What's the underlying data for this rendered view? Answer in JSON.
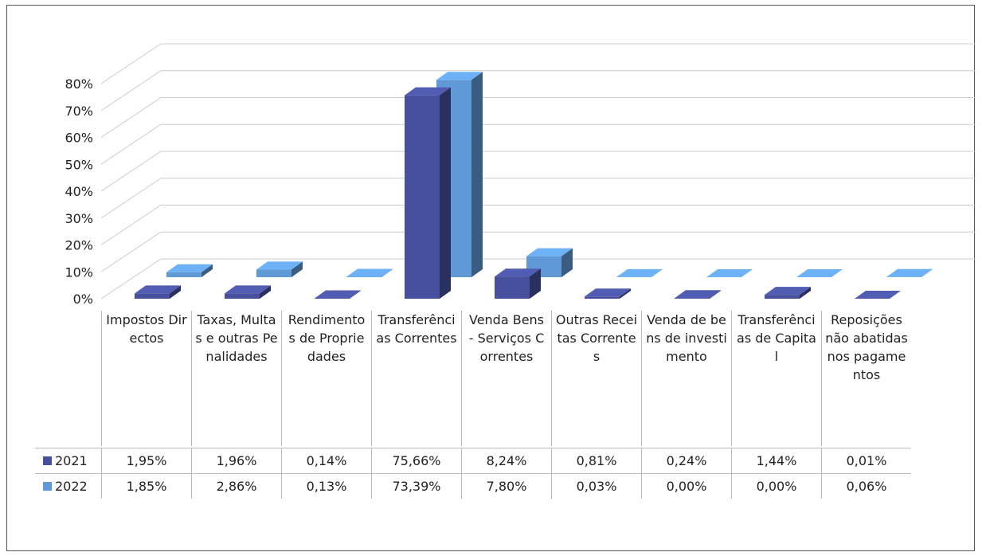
{
  "chart_data": {
    "type": "bar3d",
    "categories": [
      "Impostos Directos",
      "Taxas, Multas e outras Penalidades",
      "Rendimentos de Propriedades",
      "Transferências Correntes",
      "Venda Bens - Serviços Correntes",
      "Outras Receitas Correntes",
      "Venda de bens de investimento",
      "Transferências de Capital",
      "Reposições não abatidas nos pagamentos"
    ],
    "series": [
      {
        "name": "2021",
        "color": "#46509c",
        "values": [
          1.95,
          1.96,
          0.14,
          75.66,
          8.24,
          0.81,
          0.24,
          1.44,
          0.01
        ],
        "value_labels": [
          "1,95%",
          "1,96%",
          "0,14%",
          "75,66%",
          "8,24%",
          "0,81%",
          "0,24%",
          "1,44%",
          "0,01%"
        ]
      },
      {
        "name": "2022",
        "color": "#5f9ad6",
        "values": [
          1.85,
          2.86,
          0.13,
          73.39,
          7.8,
          0.03,
          0.0,
          0.0,
          0.06
        ],
        "value_labels": [
          "1,85%",
          "2,86%",
          "0,13%",
          "73,39%",
          "7,80%",
          "0,03%",
          "0,00%",
          "0,00%",
          "0,06%"
        ]
      }
    ],
    "ylim": [
      0,
      80
    ],
    "yticks": [
      {
        "value": 0,
        "label": "0%"
      },
      {
        "value": 10,
        "label": "10%"
      },
      {
        "value": 20,
        "label": "20%"
      },
      {
        "value": 30,
        "label": "30%"
      },
      {
        "value": 40,
        "label": "40%"
      },
      {
        "value": 50,
        "label": "50%"
      },
      {
        "value": 60,
        "label": "60%"
      },
      {
        "value": 70,
        "label": "70%"
      },
      {
        "value": 80,
        "label": "80%"
      }
    ],
    "grid": true
  }
}
